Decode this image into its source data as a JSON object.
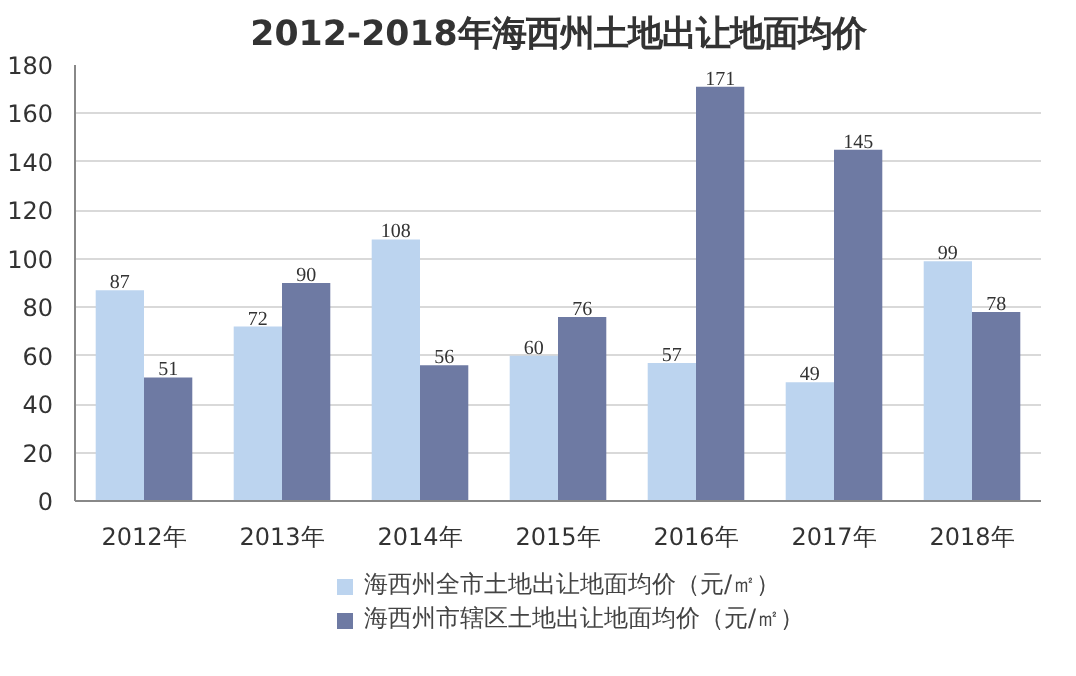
{
  "chart_data": {
    "type": "bar",
    "title": "2012-2018年海西州土地出让地面均价",
    "categories": [
      "2012年",
      "2013年",
      "2014年",
      "2015年",
      "2016年",
      "2017年",
      "2018年"
    ],
    "series": [
      {
        "name": "海西州全市土地出让地面均价（元/㎡）",
        "color": "#bcd4ef",
        "values": [
          87,
          72,
          108,
          60,
          57,
          49,
          99
        ]
      },
      {
        "name": "海西州市辖区土地出让地面均价（元/㎡）",
        "color": "#6e7aa3",
        "values": [
          51,
          90,
          56,
          76,
          171,
          145,
          78
        ]
      }
    ],
    "ylim": [
      0,
      180
    ],
    "yticks": [
      0,
      20,
      40,
      60,
      80,
      100,
      120,
      140,
      160,
      180
    ],
    "grid": "y",
    "legend": "bottom",
    "data_labels": true
  }
}
